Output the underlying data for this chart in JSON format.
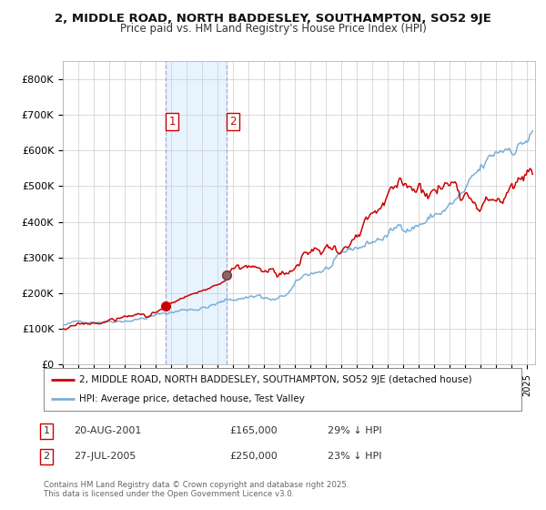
{
  "title1": "2, MIDDLE ROAD, NORTH BADDESLEY, SOUTHAMPTON, SO52 9JE",
  "title2": "Price paid vs. HM Land Registry's House Price Index (HPI)",
  "background_color": "#ffffff",
  "plot_bg_color": "#ffffff",
  "grid_color": "#cccccc",
  "hpi_color": "#7ab0d8",
  "price_color": "#cc0000",
  "vline_color": "#aaaacc",
  "span_color": "#ddeeff",
  "sale1_date_num": 2001.64,
  "sale1_price": 165000,
  "sale2_date_num": 2005.56,
  "sale2_price": 250000,
  "legend_line1": "2, MIDDLE ROAD, NORTH BADDESLEY, SOUTHAMPTON, SO52 9JE (detached house)",
  "legend_line2": "HPI: Average price, detached house, Test Valley",
  "table_row1": [
    "1",
    "20-AUG-2001",
    "£165,000",
    "29% ↓ HPI"
  ],
  "table_row2": [
    "2",
    "27-JUL-2005",
    "£250,000",
    "23% ↓ HPI"
  ],
  "footnote1": "Contains HM Land Registry data © Crown copyright and database right 2025.",
  "footnote2": "This data is licensed under the Open Government Licence v3.0.",
  "xmin": 1995.0,
  "xmax": 2025.5,
  "ymin": 0,
  "ymax": 850000
}
